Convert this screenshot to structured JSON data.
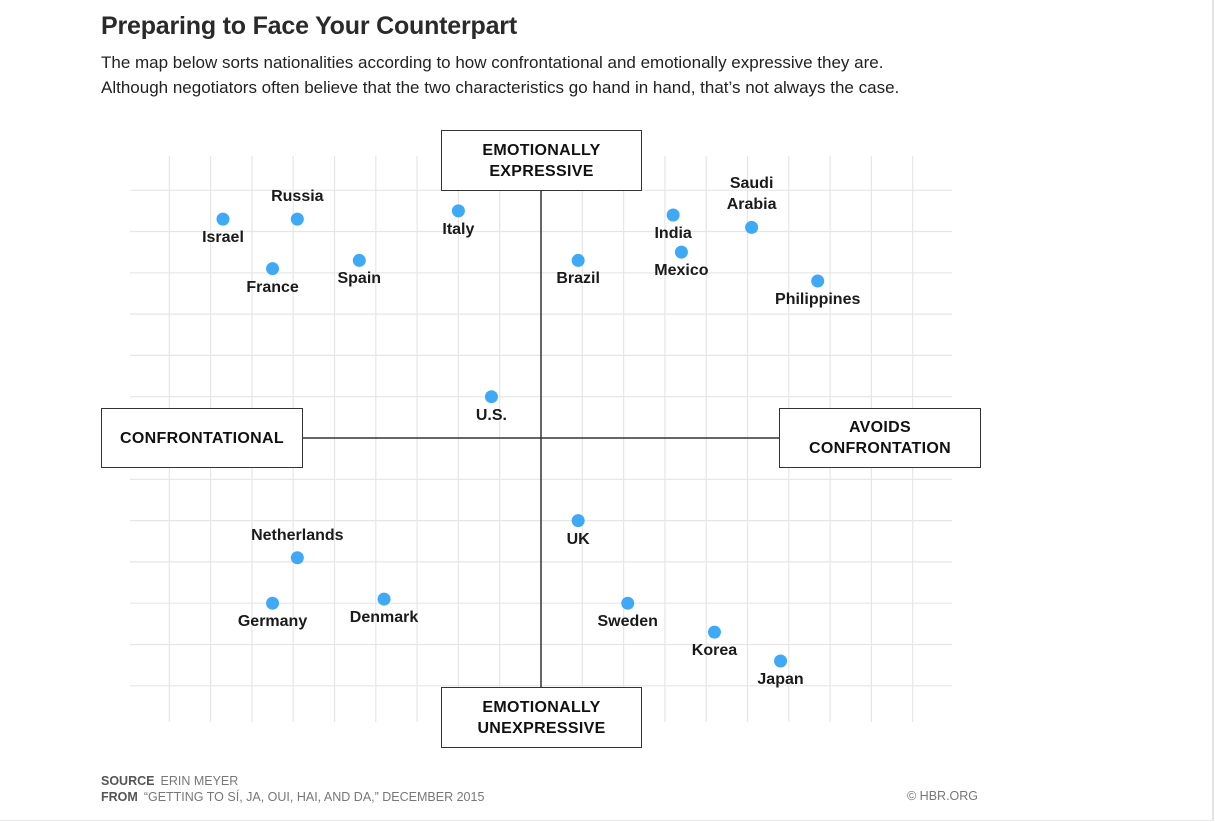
{
  "header": {
    "title": "Preparing to Face Your Counterpart",
    "subtitle_line1": "The map below sorts nationalities according to how confrontational and emotionally expressive they are.",
    "subtitle_line2": "Although negotiators often believe that the two characteristics go hand in hand, that’s not always the case."
  },
  "axes": {
    "top": "EMOTIONALLY\nEXPRESSIVE",
    "bottom": "EMOTIONALLY\nUNEXPRESSIVE",
    "left": "CONFRONTATIONAL",
    "right": "AVOIDS\nCONFRONTATION"
  },
  "footer": {
    "source_label": "SOURCE",
    "source_value": "ERIN MEYER",
    "from_label": "FROM",
    "from_value": "“GETTING TO SÍ, JA, OUI, HAI, AND DA,” DECEMBER 2015",
    "credit": "© HBR.ORG"
  },
  "colors": {
    "point": "#3fa9f5",
    "grid": "#e6e6e6",
    "axis": "#333333"
  },
  "chart_data": {
    "type": "scatter",
    "title": "Preparing to Face Your Counterpart",
    "xlabel": "Confrontational ← → Avoids Confrontation",
    "ylabel": "Emotionally Unexpressive ← → Emotionally Expressive",
    "xlim": [
      -10,
      10
    ],
    "ylim": [
      -7,
      7
    ],
    "grid": true,
    "points": [
      {
        "name": "Israel",
        "x": -7.7,
        "y": 5.3,
        "label_pos": "below"
      },
      {
        "name": "Russia",
        "x": -5.9,
        "y": 5.3,
        "label_pos": "above"
      },
      {
        "name": "France",
        "x": -6.5,
        "y": 4.1,
        "label_pos": "below"
      },
      {
        "name": "Spain",
        "x": -4.4,
        "y": 4.3,
        "label_pos": "below"
      },
      {
        "name": "Italy",
        "x": -2.0,
        "y": 5.5,
        "label_pos": "below"
      },
      {
        "name": "Brazil",
        "x": 0.9,
        "y": 4.3,
        "label_pos": "below"
      },
      {
        "name": "India",
        "x": 3.2,
        "y": 5.4,
        "label_pos": "below"
      },
      {
        "name": "Mexico",
        "x": 3.4,
        "y": 4.5,
        "label_pos": "below"
      },
      {
        "name": "Saudi\nArabia",
        "x": 5.1,
        "y": 5.1,
        "label_pos": "above"
      },
      {
        "name": "Philippines",
        "x": 6.7,
        "y": 3.8,
        "label_pos": "below"
      },
      {
        "name": "U.S.",
        "x": -1.2,
        "y": 1.0,
        "label_pos": "below"
      },
      {
        "name": "Netherlands",
        "x": -5.9,
        "y": -2.9,
        "label_pos": "above"
      },
      {
        "name": "Germany",
        "x": -6.5,
        "y": -4.0,
        "label_pos": "below"
      },
      {
        "name": "Denmark",
        "x": -3.8,
        "y": -3.9,
        "label_pos": "below"
      },
      {
        "name": "UK",
        "x": 0.9,
        "y": -2.0,
        "label_pos": "below"
      },
      {
        "name": "Sweden",
        "x": 2.1,
        "y": -4.0,
        "label_pos": "below"
      },
      {
        "name": "Korea",
        "x": 4.2,
        "y": -4.7,
        "label_pos": "below"
      },
      {
        "name": "Japan",
        "x": 5.8,
        "y": -5.4,
        "label_pos": "below"
      }
    ]
  }
}
